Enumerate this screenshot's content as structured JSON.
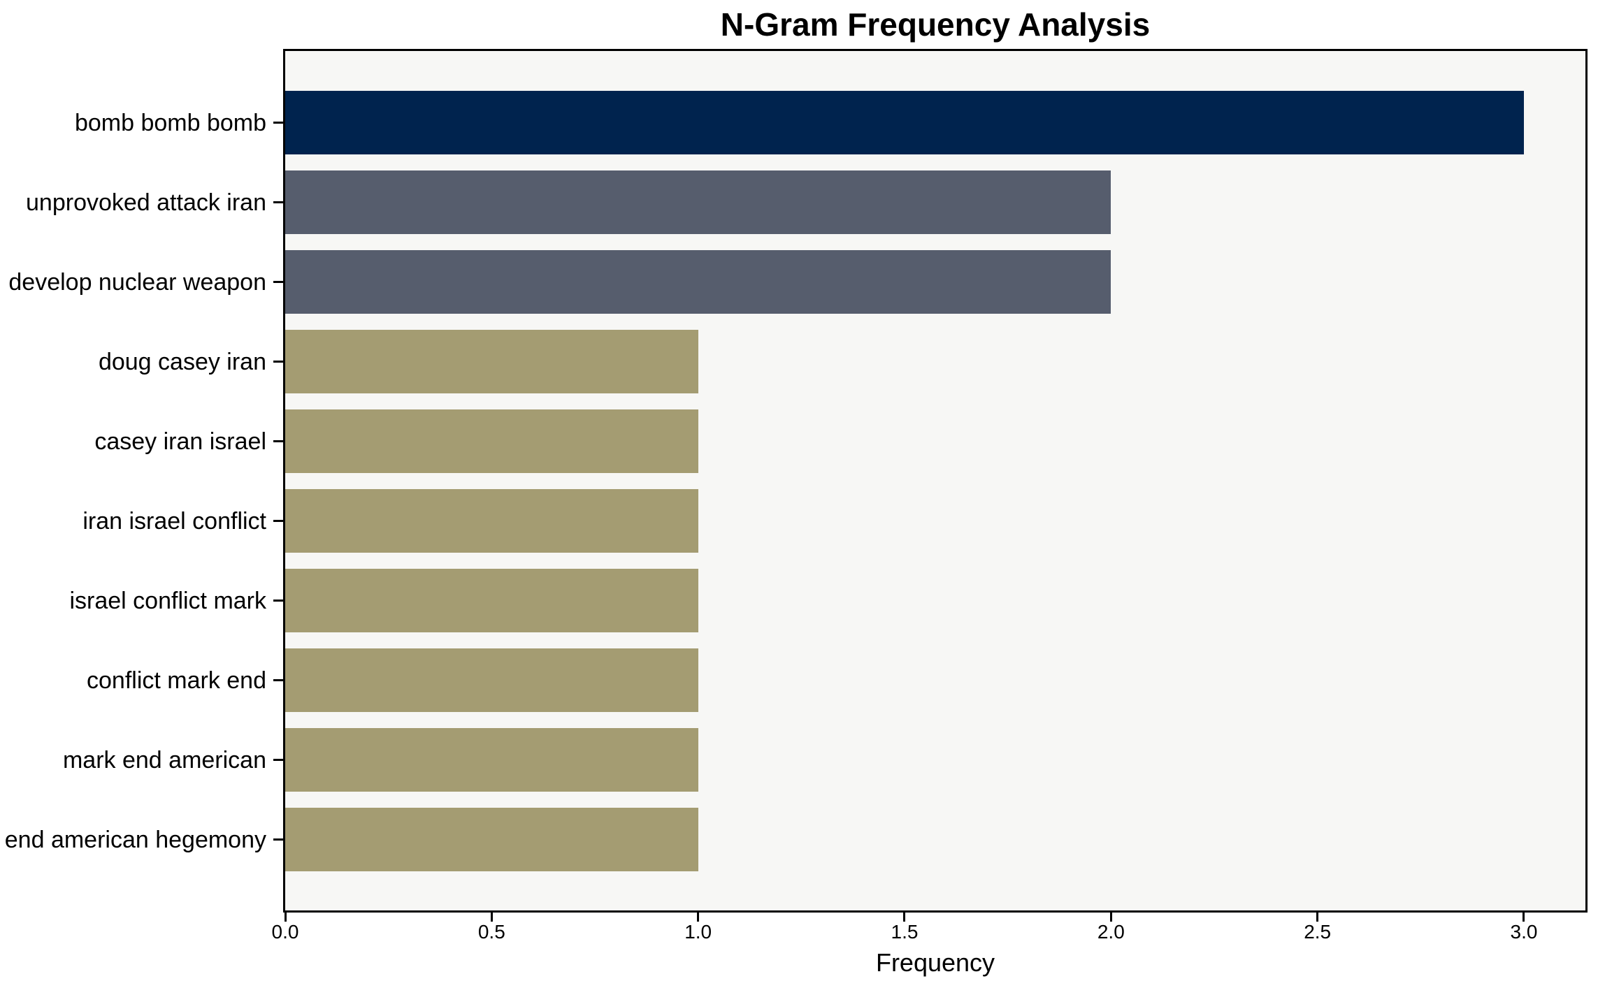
{
  "chart_data": {
    "type": "bar",
    "orientation": "horizontal",
    "title": "N-Gram Frequency Analysis",
    "xlabel": "Frequency",
    "ylabel": "",
    "categories": [
      "bomb bomb bomb",
      "unprovoked attack iran",
      "develop nuclear weapon",
      "doug casey iran",
      "casey iran israel",
      "iran israel conflict",
      "israel conflict mark",
      "conflict mark end",
      "mark end american",
      "end american hegemony"
    ],
    "values": [
      3,
      2,
      2,
      1,
      1,
      1,
      1,
      1,
      1,
      1
    ],
    "bar_colors": [
      "#00234e",
      "#565d6d",
      "#565d6d",
      "#a49c72",
      "#a49c72",
      "#a49c72",
      "#a49c72",
      "#a49c72",
      "#a49c72",
      "#a49c72"
    ],
    "x_ticks": [
      "0.0",
      "0.5",
      "1.0",
      "1.5",
      "2.0",
      "2.5",
      "3.0"
    ],
    "x_tick_values": [
      0,
      0.5,
      1.0,
      1.5,
      2.0,
      2.5,
      3.0
    ],
    "xlim": [
      0,
      3.149
    ],
    "grid": false,
    "legend": null,
    "colors": {
      "plot_background": "#f7f7f5",
      "figure_background": "#ffffff",
      "spine": "#000000",
      "text": "#000000"
    }
  }
}
